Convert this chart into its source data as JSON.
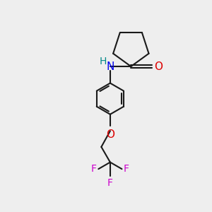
{
  "background_color": "#eeeeee",
  "bond_color": "#1a1a1a",
  "N_color": "#0000ee",
  "O_color": "#dd0000",
  "F_color": "#cc00cc",
  "H_color": "#008888",
  "line_width": 1.5,
  "font_size": 10,
  "figsize": [
    3.0,
    3.0
  ],
  "dpi": 100,
  "xlim": [
    0,
    10
  ],
  "ylim": [
    0,
    10
  ]
}
